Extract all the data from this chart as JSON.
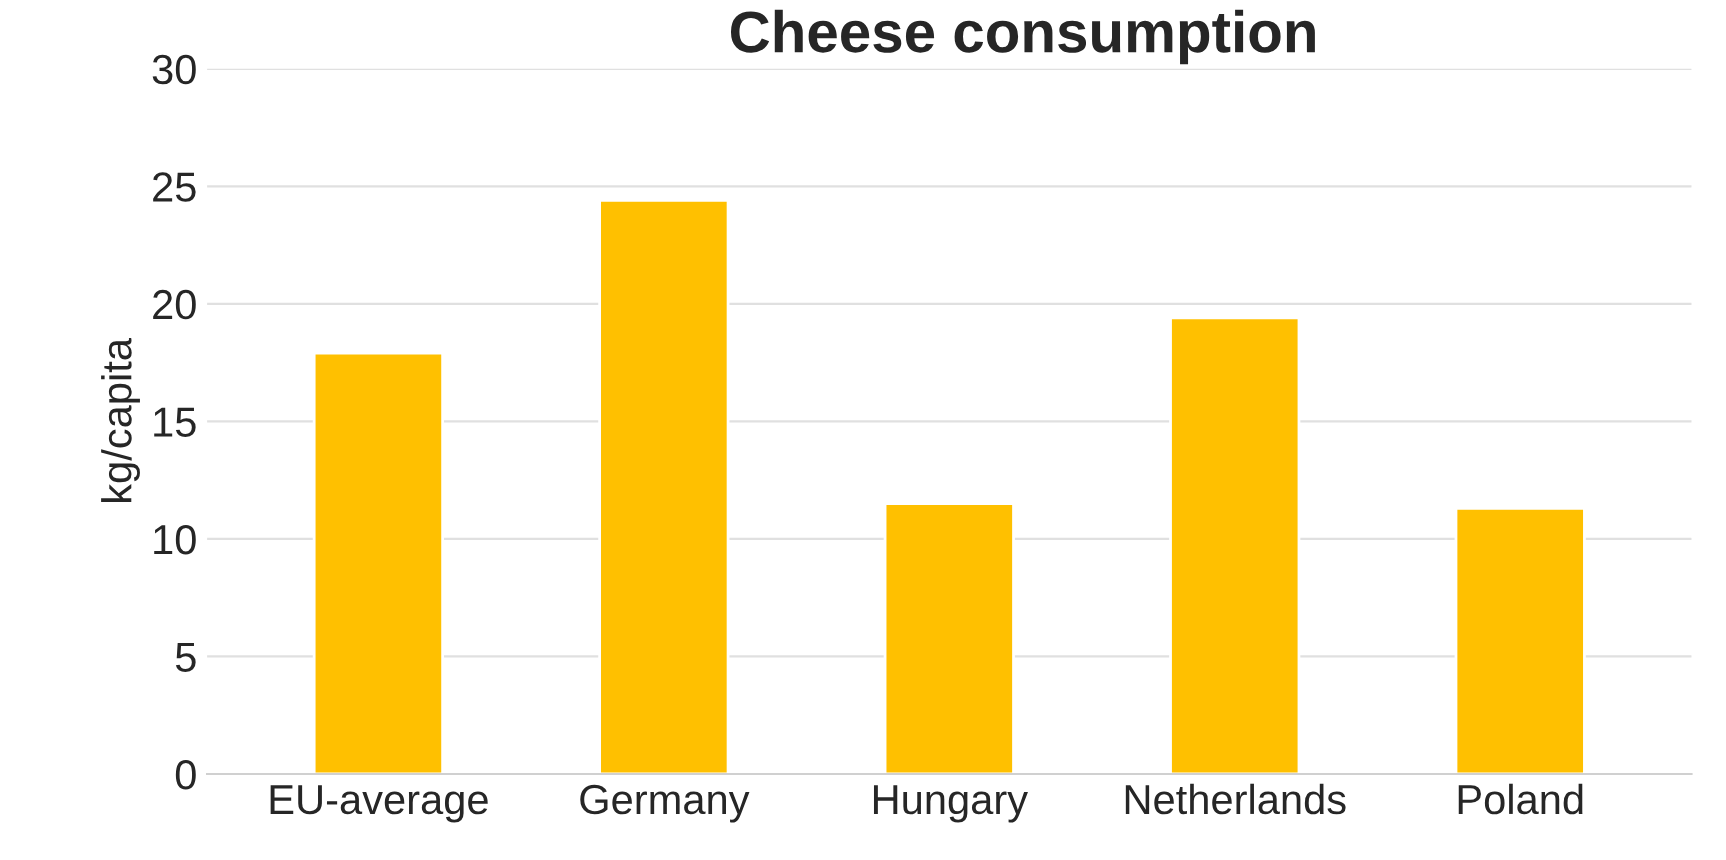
{
  "chart_data": {
    "type": "bar",
    "title": "Cheese consumption",
    "ylabel": "kg/capita",
    "categories": [
      "EU-average",
      "Germany",
      "Hungary",
      "Netherlands",
      "Poland"
    ],
    "values": [
      17.9,
      24.4,
      11.5,
      19.4,
      11.3
    ],
    "color": "#ffc000",
    "ylim": [
      0,
      30
    ],
    "yticks": [
      0,
      5,
      10,
      15,
      20,
      25,
      30
    ],
    "grid": "y"
  }
}
